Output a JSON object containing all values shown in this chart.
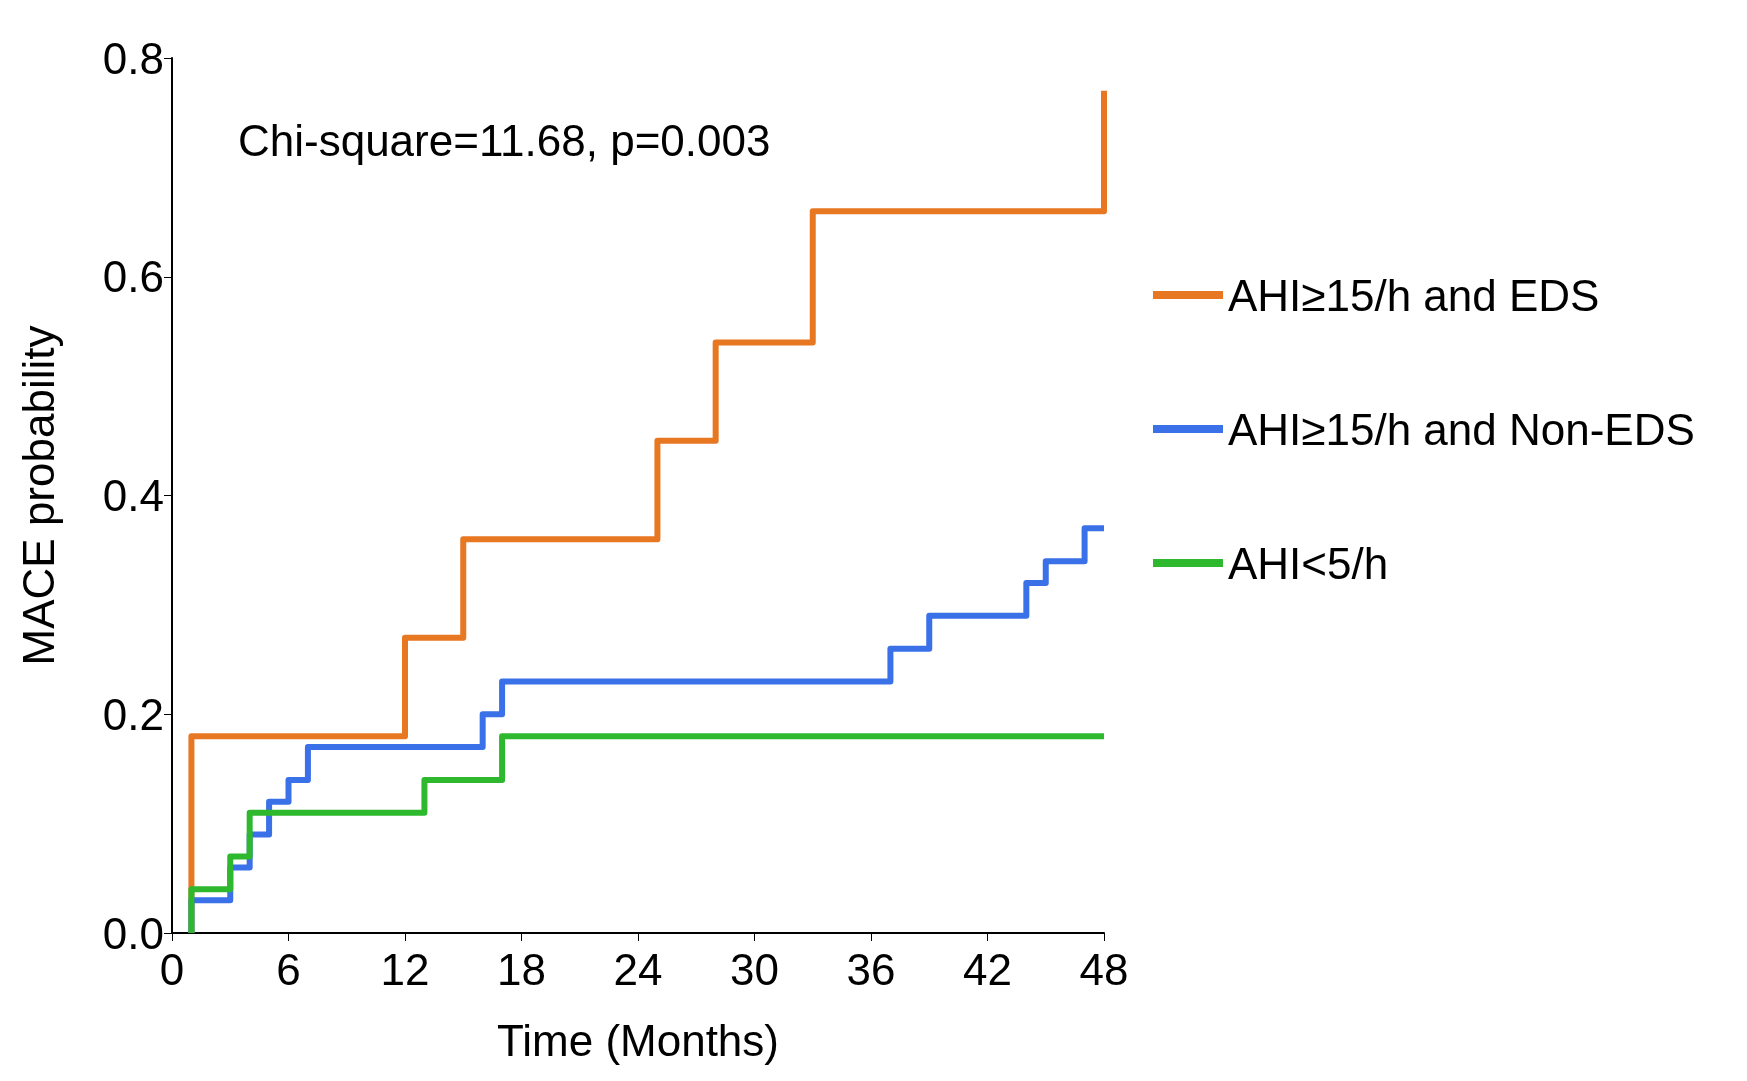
{
  "chart_data": {
    "type": "step",
    "xlabel": "Time (Months)",
    "ylabel": "MACE probability",
    "annotations": [
      "Chi-square=11.68, p=0.003"
    ],
    "xlim": [
      0,
      48
    ],
    "xticks": [
      0,
      6,
      12,
      18,
      24,
      30,
      36,
      42,
      48
    ],
    "ylim": [
      0,
      0.8
    ],
    "yticks": [
      {
        "value": 0,
        "label": "0.0"
      },
      0.2,
      0.4,
      0.6,
      0.8
    ],
    "grid": false,
    "legend": "right",
    "line_style": "solid",
    "marker": "none",
    "series": [
      {
        "name": "AHI≥15/h and EDS",
        "color": "#e87722",
        "x": [
          1,
          1,
          12,
          15,
          25,
          28,
          33,
          48
        ],
        "values": [
          0,
          0.18,
          0.27,
          0.36,
          0.45,
          0.54,
          0.66,
          0.77
        ]
      },
      {
        "name": "AHI≥15/h and Non-EDS",
        "color": "#3a70e8",
        "x": [
          1,
          1,
          3,
          4,
          5,
          6,
          7,
          16,
          17,
          37,
          39,
          44,
          45,
          47,
          48
        ],
        "values": [
          0,
          0.03,
          0.06,
          0.09,
          0.12,
          0.14,
          0.17,
          0.2,
          0.23,
          0.26,
          0.29,
          0.32,
          0.34,
          0.37,
          0.37
        ]
      },
      {
        "name": "AHI<5/h",
        "color": "#2eb82e",
        "x": [
          1,
          1,
          3,
          4,
          13,
          17,
          48
        ],
        "values": [
          0,
          0.04,
          0.07,
          0.11,
          0.14,
          0.18,
          0.18
        ]
      }
    ]
  }
}
